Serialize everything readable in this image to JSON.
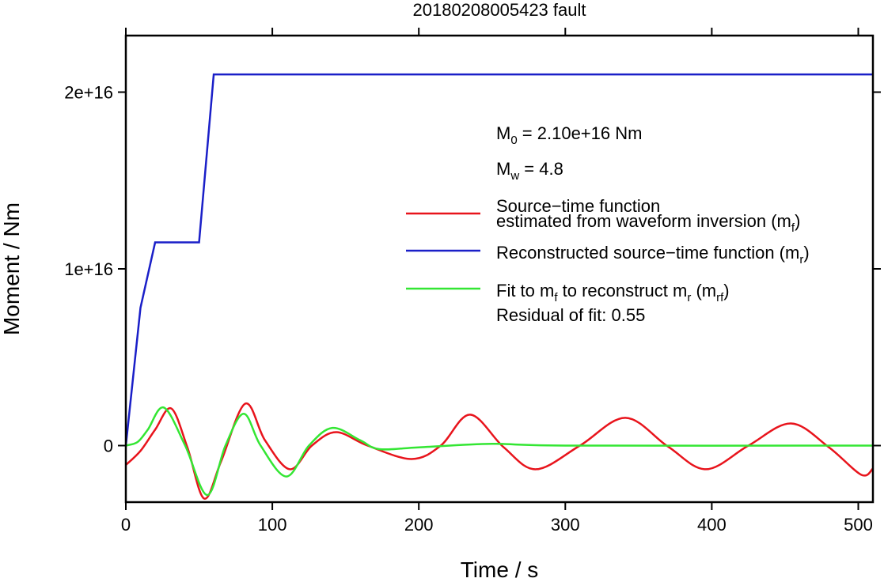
{
  "chart_data": {
    "type": "line",
    "title": "20180208005423 fault",
    "x_label": "Time / s",
    "y_label": "Moment / Nm",
    "xlim": [
      0,
      510
    ],
    "ylim": [
      -3200000000000000.0,
      2.32e+16
    ],
    "xticks": [
      0,
      100,
      200,
      300,
      400,
      500
    ],
    "yticks": [
      0,
      {
        "value": 1e+16,
        "label": "1e+16"
      },
      {
        "value": 2e+16,
        "label": "2e+16"
      }
    ],
    "annotations": [
      [
        "M",
        {
          "sub": "0"
        },
        " = 2.10e+16 Nm"
      ],
      [
        "M",
        {
          "sub": "w"
        },
        " = 4.8"
      ],
      [
        "Residual of fit: 0.55"
      ]
    ],
    "series": [
      {
        "name": [
          [
            "Source−time function"
          ],
          [
            "estimated from waveform inversion (m",
            {
              "sub": "f"
            },
            ")"
          ]
        ],
        "color": "#e8141c",
        "x": [
          0,
          10,
          20,
          31,
          42,
          53.5,
          65,
          81.5,
          95,
          112,
          127,
          143.6,
          165,
          195,
          215,
          235,
          258,
          280,
          310,
          341,
          370,
          396,
          425,
          454,
          480,
          502,
          510
        ],
        "values": [
          -1100000000000000.0,
          -300000000000000.0,
          900000000000000.0,
          2100000000000000.0,
          -100000000000000.0,
          -3000000000000000.0,
          -900000000000000.0,
          2370000000000000.0,
          300000000000000.0,
          -1340000000000000.0,
          0,
          760000000000000.0,
          0,
          -760000000000000.0,
          0,
          1750000000000000.0,
          -100000000000000.0,
          -1340000000000000.0,
          0,
          1570000000000000.0,
          -50000000000000.0,
          -1340000000000000.0,
          0,
          1250000000000000.0,
          -100000000000000.0,
          -1650000000000000.0,
          -1300000000000000.0
        ]
      },
      {
        "name": [
          [
            "Reconstructed source−time function (m",
            {
              "sub": "r"
            },
            ")"
          ]
        ],
        "color": "#1a1fc8",
        "x": [
          0,
          10,
          20,
          50,
          60,
          510
        ],
        "values": [
          0,
          7800000000000000.0,
          1.15e+16,
          1.15e+16,
          2.1e+16,
          2.1e+16
        ]
      },
      {
        "name": [
          [
            "Fit to m",
            {
              "sub": "f"
            },
            " to reconstruct m",
            {
              "sub": "r"
            },
            " (m",
            {
              "sub": "rf"
            },
            ")"
          ]
        ],
        "color": "#33e633",
        "x": [
          0,
          8,
          15,
          26,
          40.5,
          55.6,
          68,
          80.5,
          92,
          109.6,
          125,
          141,
          160,
          173,
          200,
          250,
          300,
          510
        ],
        "values": [
          0,
          200000000000000.0,
          900000000000000.0,
          2150000000000000.0,
          0,
          -2800000000000000.0,
          0,
          1800000000000000.0,
          0,
          -1750000000000000.0,
          0,
          1000000000000000.0,
          300000000000000.0,
          -200000000000000.0,
          -100000000000000.0,
          100000000000000.0,
          0,
          0
        ]
      }
    ]
  }
}
